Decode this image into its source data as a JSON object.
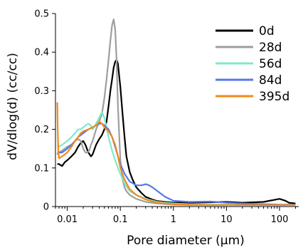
{
  "chart_data": {
    "type": "line",
    "xlabel": "Pore diameter (µm)",
    "ylabel": "dV/dlog(d) (cc/cc)",
    "xscale": "log",
    "xlim": [
      0.006,
      230
    ],
    "ylim": [
      0,
      0.5
    ],
    "x_ticks": [
      0.01,
      0.1,
      1,
      10,
      100
    ],
    "x_tick_labels": [
      "0.01",
      "0.1",
      "1",
      "10",
      "100"
    ],
    "y_ticks": [
      0,
      0.1,
      0.2,
      0.3,
      0.4,
      0.5
    ],
    "y_tick_labels": [
      "0",
      "0.1",
      "0.2",
      "0.3",
      "0.4",
      "0.5"
    ],
    "grid": false,
    "legend_position": "top-right",
    "series": [
      {
        "name": "0d",
        "color": "#000000",
        "x": [
          0.0065,
          0.007,
          0.008,
          0.009,
          0.01,
          0.012,
          0.014,
          0.016,
          0.018,
          0.02,
          0.022,
          0.025,
          0.028,
          0.03,
          0.035,
          0.04,
          0.045,
          0.05,
          0.055,
          0.06,
          0.065,
          0.07,
          0.075,
          0.08,
          0.085,
          0.09,
          0.1,
          0.11,
          0.12,
          0.13,
          0.15,
          0.17,
          0.2,
          0.25,
          0.3,
          0.4,
          0.5,
          0.7,
          1,
          2,
          5,
          10,
          20,
          50,
          100,
          130,
          150,
          200
        ],
        "y": [
          0.11,
          0.11,
          0.105,
          0.115,
          0.12,
          0.13,
          0.14,
          0.155,
          0.165,
          0.17,
          0.16,
          0.14,
          0.13,
          0.135,
          0.16,
          0.175,
          0.185,
          0.2,
          0.22,
          0.26,
          0.3,
          0.33,
          0.36,
          0.375,
          0.38,
          0.37,
          0.31,
          0.24,
          0.18,
          0.13,
          0.09,
          0.07,
          0.05,
          0.035,
          0.025,
          0.018,
          0.014,
          0.012,
          0.01,
          0.01,
          0.011,
          0.012,
          0.01,
          0.012,
          0.02,
          0.015,
          0.01,
          0.008
        ]
      },
      {
        "name": "28d",
        "color": "#9e9e9e",
        "x": [
          0.0065,
          0.007,
          0.008,
          0.009,
          0.01,
          0.012,
          0.014,
          0.016,
          0.018,
          0.02,
          0.022,
          0.024,
          0.026,
          0.028,
          0.03,
          0.035,
          0.04,
          0.045,
          0.05,
          0.055,
          0.06,
          0.065,
          0.07,
          0.075,
          0.08,
          0.085,
          0.09,
          0.1,
          0.11,
          0.12,
          0.13,
          0.15,
          0.2,
          0.3,
          0.5,
          1,
          2,
          5,
          10,
          20,
          50,
          100,
          200
        ],
        "y": [
          0.14,
          0.14,
          0.145,
          0.15,
          0.155,
          0.16,
          0.17,
          0.175,
          0.17,
          0.15,
          0.14,
          0.14,
          0.145,
          0.16,
          0.17,
          0.2,
          0.22,
          0.24,
          0.28,
          0.33,
          0.38,
          0.43,
          0.47,
          0.485,
          0.46,
          0.38,
          0.26,
          0.12,
          0.07,
          0.05,
          0.04,
          0.03,
          0.02,
          0.012,
          0.008,
          0.005,
          0.004,
          0.004,
          0.005,
          0.004,
          0.004,
          0.004,
          0.004
        ]
      },
      {
        "name": "56d",
        "color": "#7fe8c8",
        "x": [
          0.0065,
          0.007,
          0.008,
          0.009,
          0.01,
          0.012,
          0.014,
          0.016,
          0.018,
          0.02,
          0.022,
          0.025,
          0.028,
          0.03,
          0.035,
          0.04,
          0.045,
          0.05,
          0.06,
          0.07,
          0.08,
          0.09,
          0.1,
          0.12,
          0.15,
          0.2,
          0.3,
          0.5,
          1,
          2,
          5,
          10,
          20,
          50,
          100,
          200
        ],
        "y": [
          0.16,
          0.155,
          0.16,
          0.165,
          0.17,
          0.18,
          0.19,
          0.2,
          0.2,
          0.205,
          0.21,
          0.215,
          0.21,
          0.2,
          0.215,
          0.23,
          0.245,
          0.23,
          0.18,
          0.145,
          0.12,
          0.1,
          0.085,
          0.06,
          0.04,
          0.03,
          0.02,
          0.012,
          0.008,
          0.006,
          0.005,
          0.005,
          0.004,
          0.004,
          0.004,
          0.004
        ]
      },
      {
        "name": "84d",
        "color": "#5577ee",
        "x": [
          0.0065,
          0.007,
          0.008,
          0.009,
          0.01,
          0.012,
          0.014,
          0.016,
          0.018,
          0.02,
          0.025,
          0.03,
          0.035,
          0.04,
          0.045,
          0.05,
          0.06,
          0.07,
          0.08,
          0.09,
          0.1,
          0.12,
          0.15,
          0.2,
          0.25,
          0.3,
          0.35,
          0.4,
          0.5,
          0.7,
          1,
          2,
          5,
          10,
          20,
          50,
          100,
          200
        ],
        "y": [
          0.135,
          0.14,
          0.14,
          0.145,
          0.15,
          0.16,
          0.17,
          0.18,
          0.185,
          0.19,
          0.2,
          0.205,
          0.21,
          0.215,
          0.215,
          0.21,
          0.2,
          0.18,
          0.155,
          0.13,
          0.11,
          0.085,
          0.065,
          0.055,
          0.055,
          0.058,
          0.055,
          0.05,
          0.04,
          0.025,
          0.015,
          0.012,
          0.013,
          0.01,
          0.008,
          0.006,
          0.005,
          0.005
        ]
      },
      {
        "name": "395d",
        "color": "#f08a1c",
        "x": [
          0.0065,
          0.0066,
          0.0068,
          0.007,
          0.008,
          0.009,
          0.01,
          0.012,
          0.014,
          0.016,
          0.018,
          0.02,
          0.025,
          0.03,
          0.035,
          0.04,
          0.045,
          0.05,
          0.06,
          0.07,
          0.08,
          0.09,
          0.1,
          0.12,
          0.15,
          0.2,
          0.3,
          0.5,
          1,
          2,
          5,
          10,
          20,
          50,
          100,
          200
        ],
        "y": [
          0.27,
          0.2,
          0.14,
          0.125,
          0.13,
          0.135,
          0.14,
          0.155,
          0.17,
          0.18,
          0.19,
          0.195,
          0.2,
          0.205,
          0.21,
          0.22,
          0.215,
          0.205,
          0.195,
          0.18,
          0.16,
          0.13,
          0.1,
          0.07,
          0.045,
          0.03,
          0.018,
          0.01,
          0.006,
          0.005,
          0.004,
          0.004,
          0.004,
          0.004,
          0.004,
          0.004
        ]
      }
    ]
  }
}
